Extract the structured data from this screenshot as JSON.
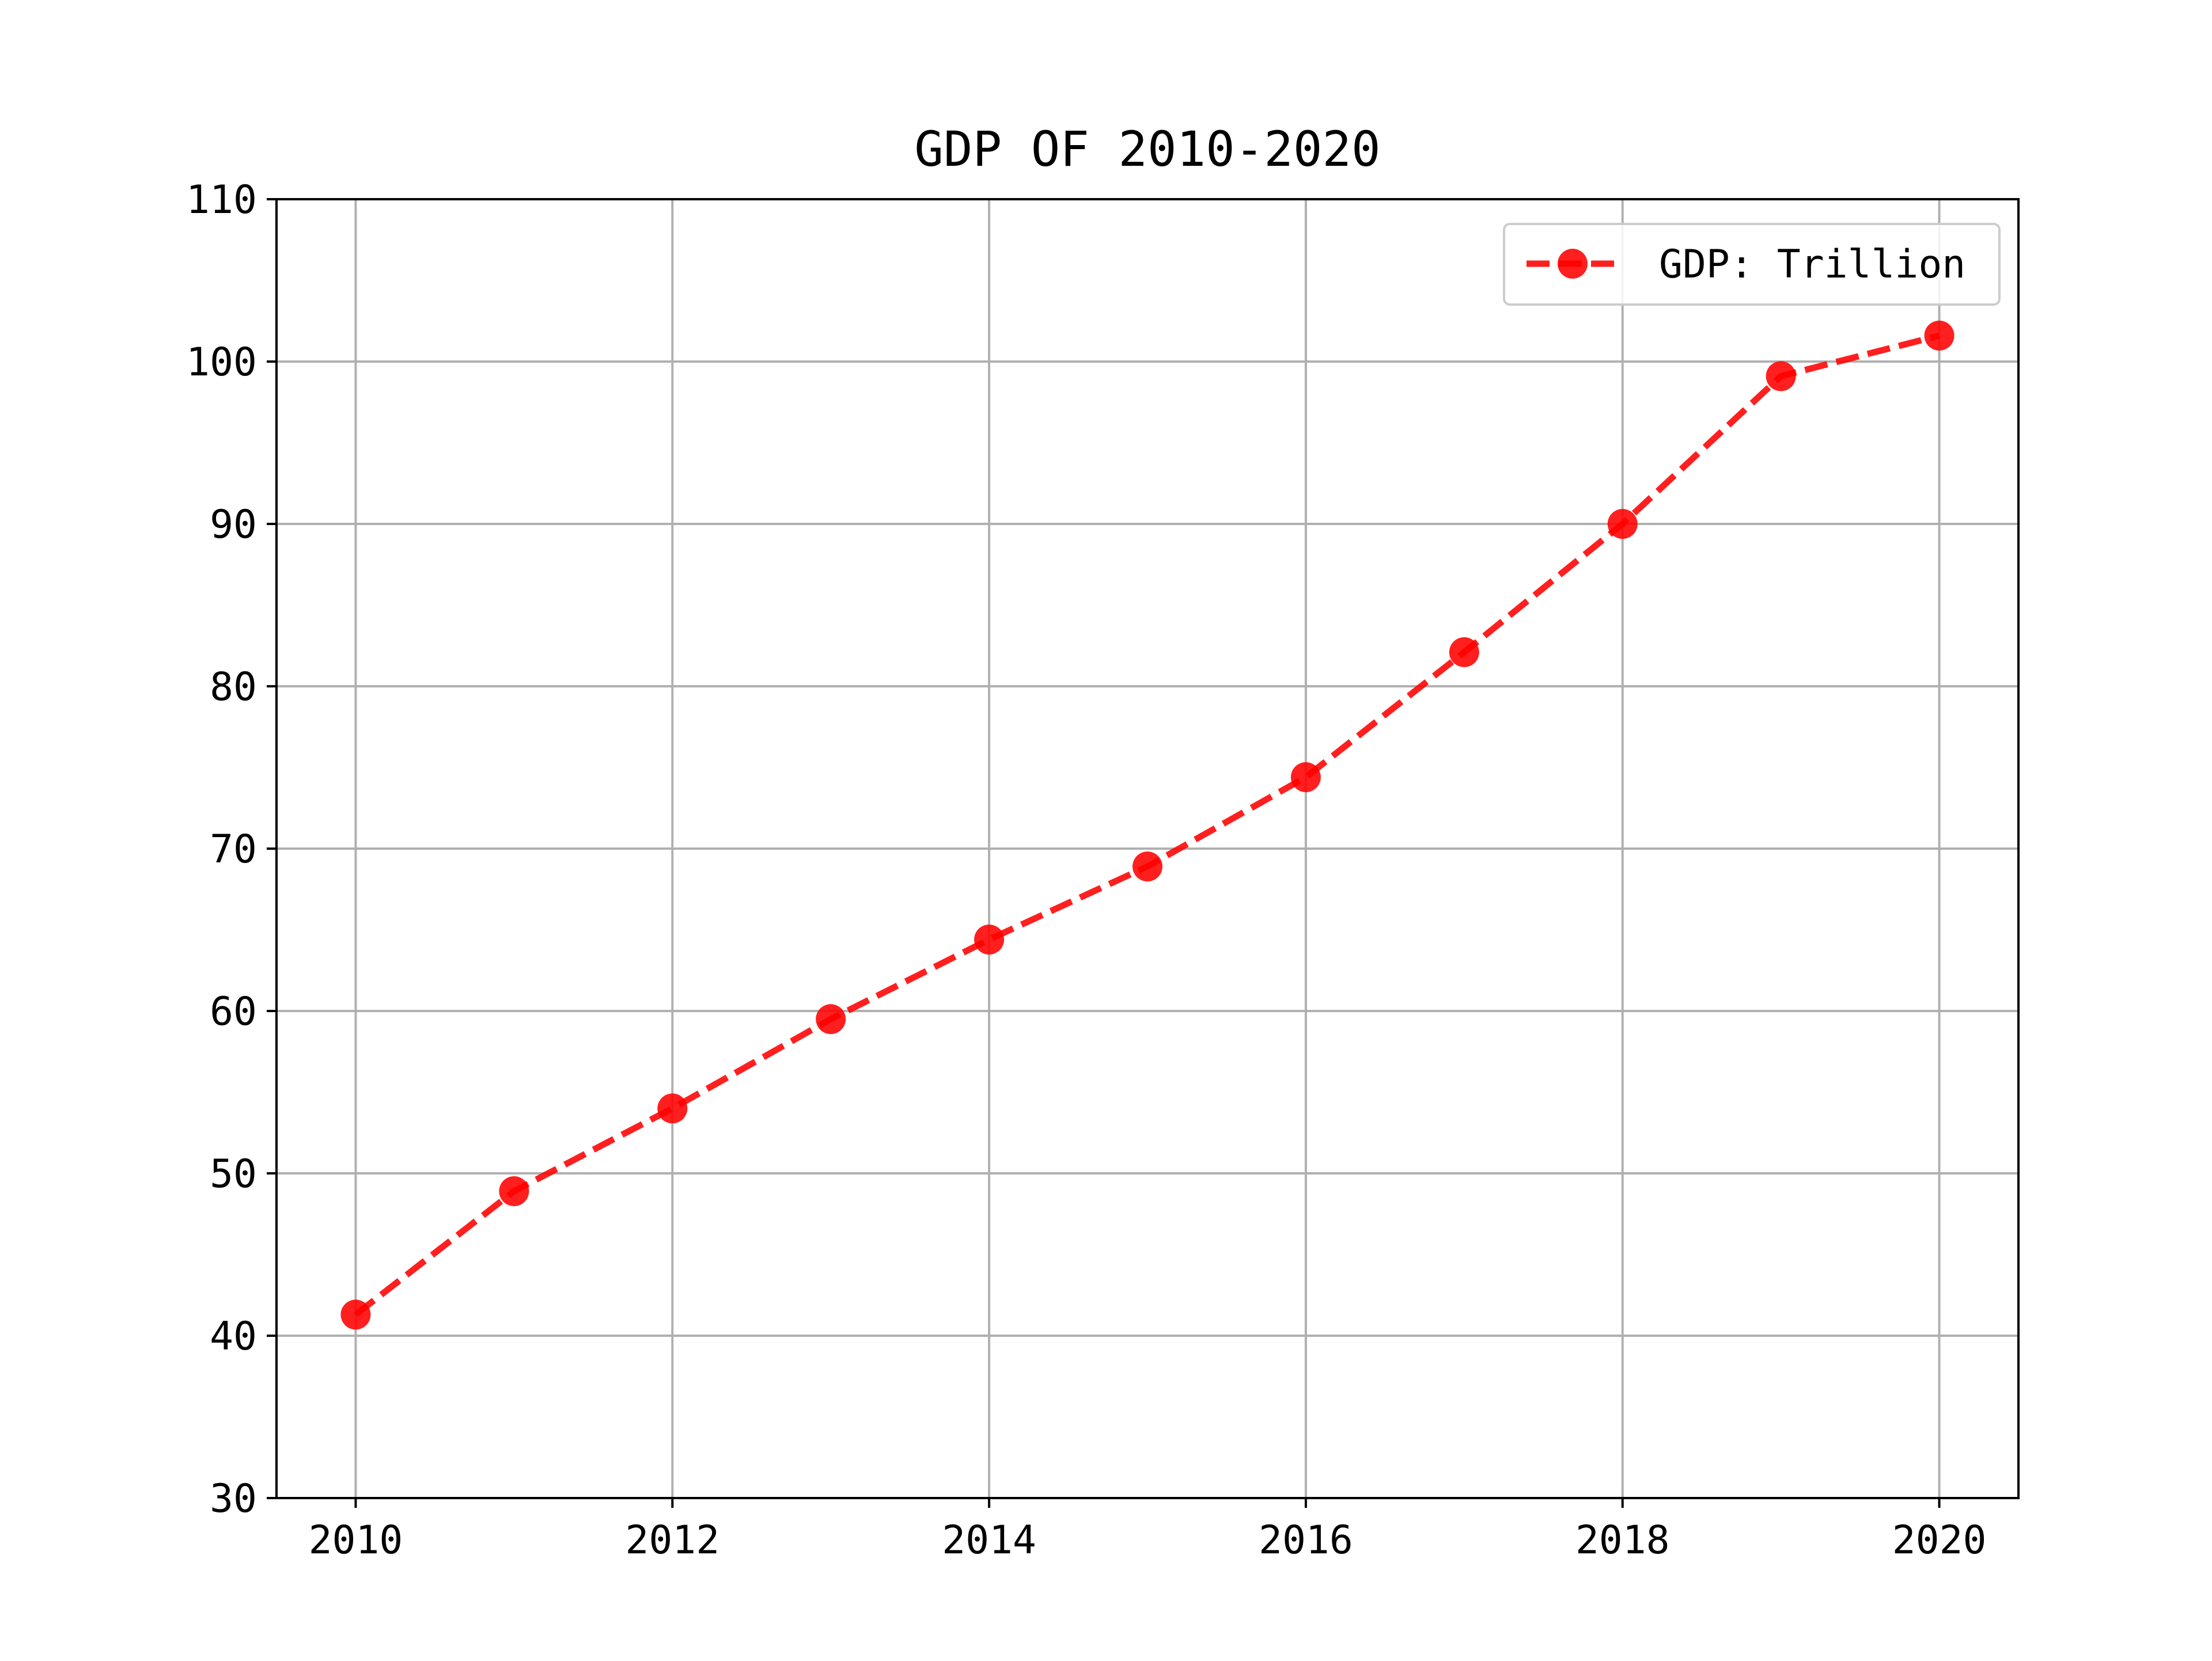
{
  "chart_data": {
    "type": "line",
    "title": "GDP OF 2010-2020",
    "xlabel": "",
    "ylabel": "",
    "xlim": [
      2009.5,
      2020.5
    ],
    "ylim": [
      30,
      110
    ],
    "x_ticks": [
      "2010",
      "2012",
      "2014",
      "2016",
      "2018",
      "2020"
    ],
    "y_ticks": [
      "30",
      "40",
      "50",
      "60",
      "70",
      "80",
      "90",
      "100",
      "110"
    ],
    "grid": true,
    "legend_position": "top-right",
    "x": [
      2010,
      2011,
      2012,
      2013,
      2014,
      2015,
      2016,
      2017,
      2018,
      2019,
      2020
    ],
    "series": [
      {
        "name": "GDP: Trillion",
        "color": "#ff0000",
        "line_style": "dashed",
        "marker": "circle",
        "values": [
          41.3,
          48.9,
          54.0,
          59.5,
          64.4,
          68.9,
          74.4,
          82.1,
          90.0,
          99.1,
          101.6
        ]
      }
    ]
  }
}
